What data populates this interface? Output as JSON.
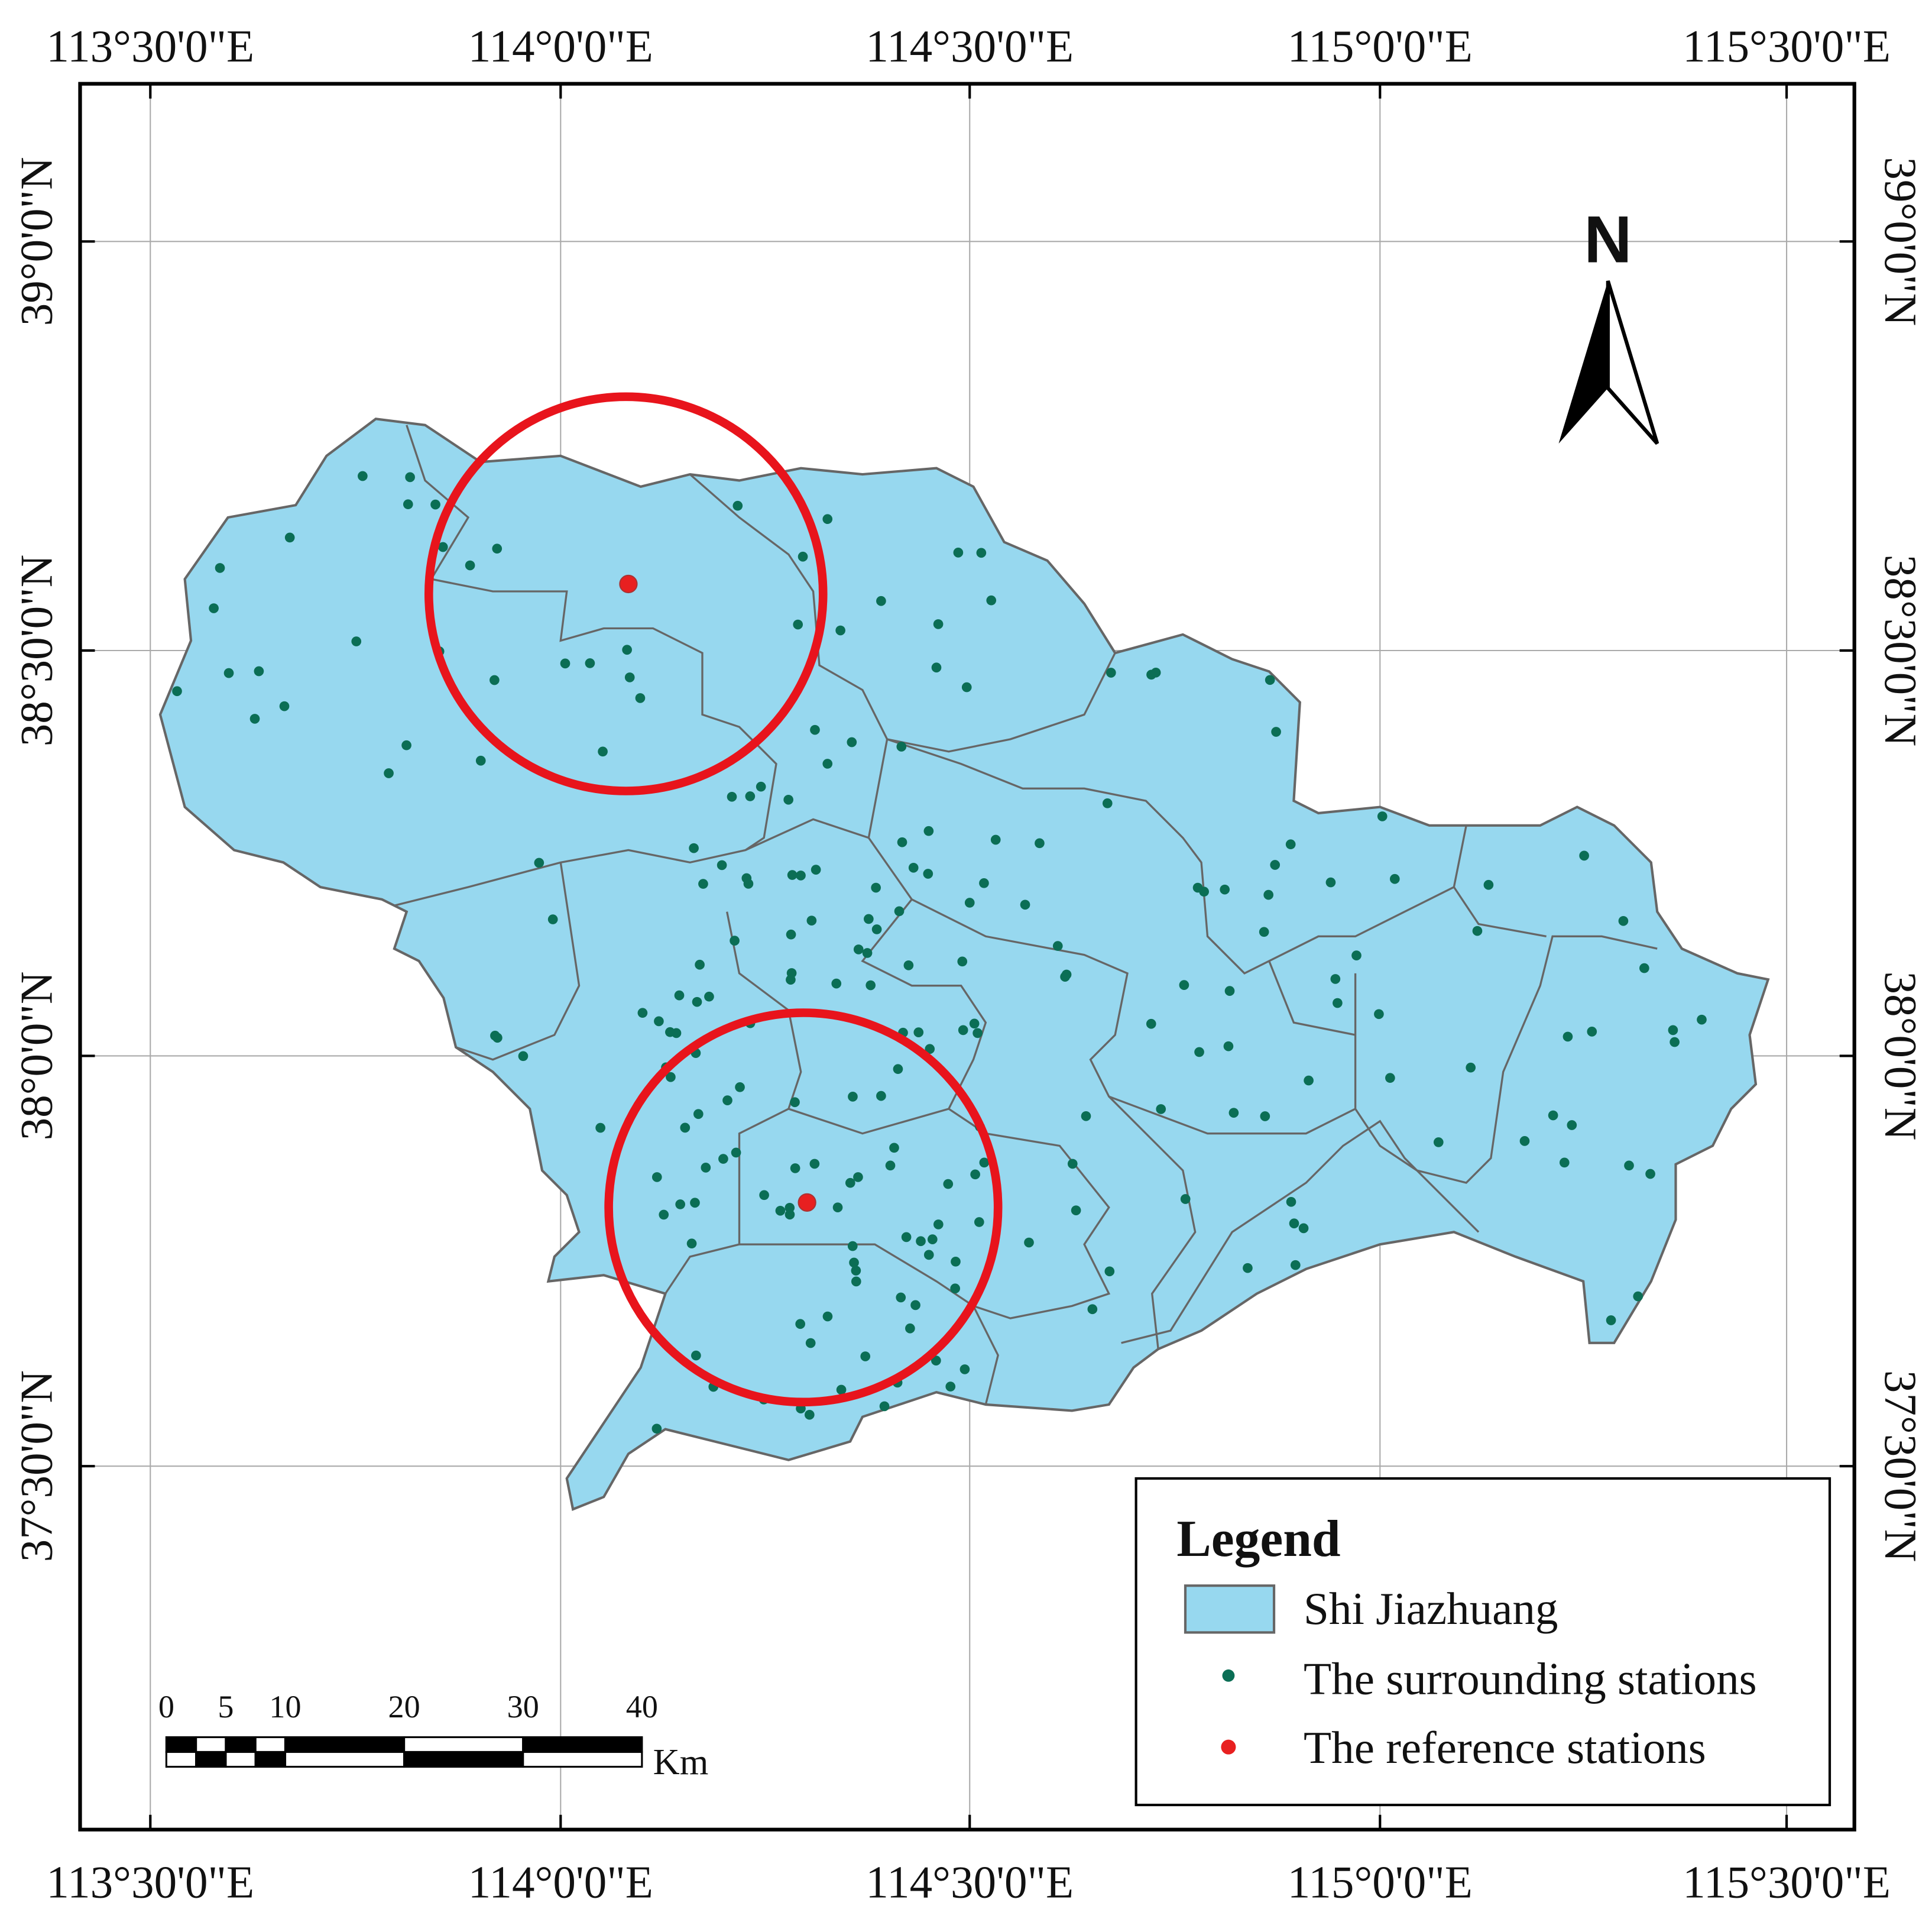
{
  "graticule": {
    "longitude_labels": [
      "113°30'0\"E",
      "114°0'0\"E",
      "114°30'0\"E",
      "115°0'0\"E",
      "115°30'0\"E"
    ],
    "latitude_labels": [
      "39°0'0\"N",
      "38°30'0\"N",
      "38°0'0\"N",
      "37°30'0\"N"
    ]
  },
  "north_arrow": {
    "label": "N"
  },
  "legend": {
    "title": "Legend",
    "items": [
      "Shi Jiazhuang",
      "The surrounding stations",
      "The reference stations"
    ]
  },
  "scale_bar": {
    "labels": [
      0,
      5,
      10,
      20,
      30,
      40
    ],
    "unit": "Km"
  }
}
